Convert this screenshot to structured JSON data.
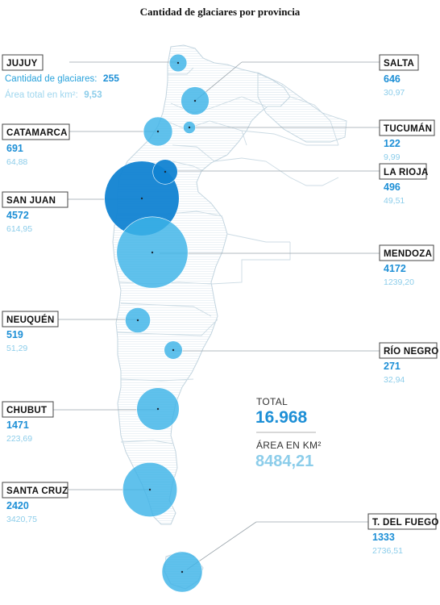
{
  "title": "Cantidad de glaciares por provincia",
  "legend": {
    "count_label": "Cantidad de glaciares:",
    "count_value": "255",
    "area_label": "Área total en km²:",
    "area_value": "9,53"
  },
  "totals": {
    "total_label": "TOTAL",
    "total_value": "16.968",
    "area_label": "ÁREA EN KM²",
    "area_value": "8484,21"
  },
  "colors": {
    "count": "#1d8fd6",
    "area": "#8ccdea",
    "bubble": "#3db3e8",
    "bubble_dark": "#1183d2",
    "map": "#dde8ee"
  },
  "chart_data": {
    "type": "bubble-map",
    "title": "Cantidad de glaciares por provincia",
    "size_encodes": "glacier count",
    "provinces": [
      {
        "name": "JUJUY",
        "count": 255,
        "count_label": "255",
        "area_km2": 9.53,
        "area_label": "9,53"
      },
      {
        "name": "SALTA",
        "count": 646,
        "count_label": "646",
        "area_km2": 30.97,
        "area_label": "30,97"
      },
      {
        "name": "CATAMARCA",
        "count": 691,
        "count_label": "691",
        "area_km2": 64.88,
        "area_label": "64,88"
      },
      {
        "name": "TUCUMÁN",
        "count": 122,
        "count_label": "122",
        "area_km2": 9.99,
        "area_label": "9,99"
      },
      {
        "name": "LA RIOJA",
        "count": 496,
        "count_label": "496",
        "area_km2": 49.51,
        "area_label": "49,51"
      },
      {
        "name": "SAN JUAN",
        "count": 4572,
        "count_label": "4572",
        "area_km2": 614.95,
        "area_label": "614,95"
      },
      {
        "name": "MENDOZA",
        "count": 4172,
        "count_label": "4172",
        "area_km2": 1239.2,
        "area_label": "1239,20"
      },
      {
        "name": "NEUQUÉN",
        "count": 519,
        "count_label": "519",
        "area_km2": 51.29,
        "area_label": "51,29"
      },
      {
        "name": "RÍO NEGRO",
        "count": 271,
        "count_label": "271",
        "area_km2": 32.94,
        "area_label": "32,94"
      },
      {
        "name": "CHUBUT",
        "count": 1471,
        "count_label": "1471",
        "area_km2": 223.69,
        "area_label": "223,69"
      },
      {
        "name": "SANTA CRUZ",
        "count": 2420,
        "count_label": "2420",
        "area_km2": 3420.75,
        "area_label": "3420,75"
      },
      {
        "name": "T. DEL FUEGO",
        "count": 1333,
        "count_label": "1333",
        "area_km2": 2736.51,
        "area_label": "2736,51"
      }
    ],
    "total_count": 16968,
    "total_area_km2": 8484.21
  }
}
